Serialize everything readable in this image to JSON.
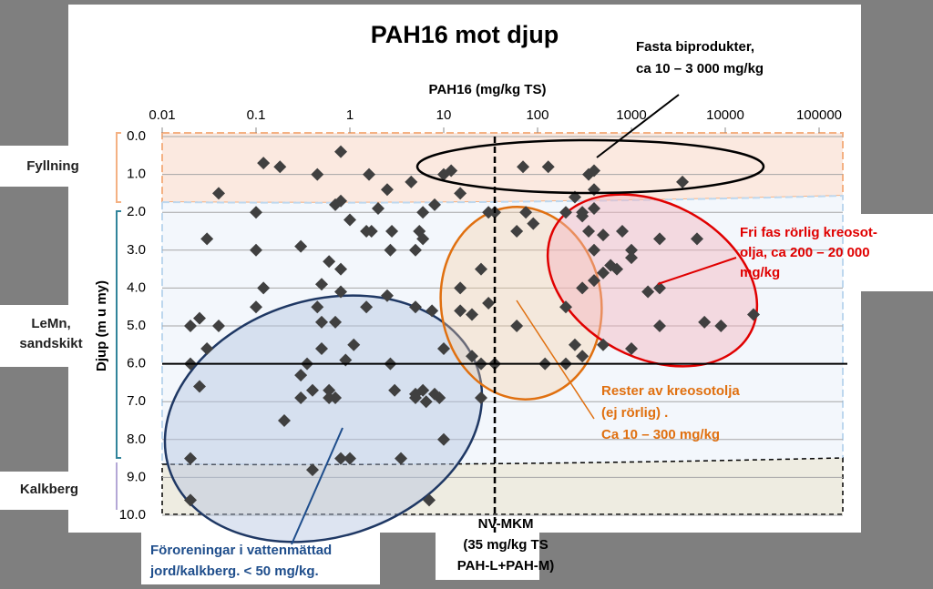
{
  "chart_data": {
    "type": "scatter",
    "title": "PAH16 mot djup",
    "x_label": "PAH16 (mg/kg TS)",
    "y_label": "Djup (m u my)",
    "log_x": true,
    "y_inverted": true,
    "grid": true,
    "color": "#404040",
    "xlim": [
      0.01,
      200000
    ],
    "xticks": [
      0.01,
      0.1,
      1,
      10,
      100,
      1000,
      10000,
      100000
    ],
    "ylim": [
      0,
      10
    ],
    "yticks": [
      {
        "value": 0,
        "label": "0.0"
      },
      {
        "value": 1,
        "label": "1.0"
      },
      {
        "value": 2,
        "label": "2.0"
      },
      {
        "value": 3,
        "label": "3.0"
      },
      {
        "value": 4,
        "label": "4.0"
      },
      {
        "value": 5,
        "label": "5.0"
      },
      {
        "value": 6,
        "label": "6.0"
      },
      {
        "value": 7,
        "label": "7.0"
      },
      {
        "value": 8,
        "label": "8.0"
      },
      {
        "value": 9,
        "label": "9.0"
      },
      {
        "value": 10,
        "label": "10.0"
      }
    ],
    "x": [
      0.12,
      0.18,
      0.45,
      0.8,
      1.6,
      2.5,
      4.5,
      12,
      10,
      15,
      0.04,
      70,
      130,
      400,
      350,
      250,
      400,
      3500,
      0.1,
      0.03,
      0.7,
      0.8,
      1.0,
      1.7,
      2.0,
      2.8,
      1.5,
      2.7,
      5.5,
      6.0,
      6.0,
      5.0,
      8.0,
      30,
      35,
      60,
      75,
      90,
      200,
      300,
      400,
      350,
      500,
      400,
      800,
      300,
      2000,
      5000,
      1000,
      1000,
      0.1,
      0.3,
      0.6,
      0.8,
      25,
      15,
      30,
      0.12,
      0.1,
      0.5,
      0.8,
      0.04,
      0.02,
      0.025,
      0.45,
      0.5,
      0.7,
      1.5,
      2.5,
      5,
      7.5,
      15,
      20,
      60,
      300,
      400,
      600,
      500,
      2000,
      1500,
      700,
      200,
      500,
      1000,
      2000,
      6000,
      9000,
      20000,
      0.02,
      0.03,
      0.025,
      0.3,
      0.35,
      0.5,
      0.4,
      0.3,
      0.6,
      0.6,
      0.7,
      0.9,
      1.1,
      2.7,
      3,
      5,
      5,
      6,
      8,
      6.5,
      9,
      10,
      20,
      25,
      25,
      35,
      120,
      200,
      250,
      300,
      0.2,
      0.02,
      0.4,
      0.8,
      1,
      3.5,
      10,
      7,
      0.02
    ],
    "values": [
      0.7,
      0.8,
      1.0,
      0.4,
      1.0,
      1.4,
      1.2,
      0.9,
      1.0,
      1.5,
      1.5,
      0.8,
      0.8,
      0.9,
      1.0,
      1.6,
      1.4,
      1.2,
      2.0,
      2.7,
      1.8,
      1.7,
      2.2,
      2.5,
      1.9,
      2.5,
      2.5,
      3.0,
      2.5,
      2.0,
      2.7,
      3.0,
      1.8,
      2.0,
      2.0,
      2.5,
      2.0,
      2.3,
      2.0,
      2.1,
      1.9,
      2.5,
      2.6,
      3.0,
      2.5,
      2.0,
      2.7,
      2.7,
      3.0,
      3.2,
      3.0,
      2.9,
      3.3,
      3.5,
      3.5,
      4.0,
      4.4,
      4.0,
      4.5,
      3.9,
      4.1,
      5.0,
      5.0,
      4.8,
      4.5,
      4.9,
      4.9,
      4.5,
      4.2,
      4.5,
      4.6,
      4.6,
      4.7,
      5.0,
      4.0,
      3.8,
      3.4,
      3.6,
      4.0,
      4.1,
      3.5,
      4.5,
      5.5,
      5.6,
      5.0,
      4.9,
      5.0,
      4.7,
      6.0,
      5.6,
      6.6,
      6.3,
      6.0,
      5.6,
      6.7,
      6.9,
      6.7,
      6.9,
      6.9,
      5.9,
      5.5,
      6.0,
      6.7,
      6.9,
      6.8,
      6.7,
      6.8,
      7.0,
      6.9,
      5.6,
      5.8,
      6.0,
      6.9,
      6.0,
      6.0,
      6.0,
      5.5,
      5.8,
      7.5,
      8.5,
      8.8,
      8.5,
      8.5,
      8.5,
      8.0,
      9.6,
      9.6
    ],
    "reference_lines": [
      {
        "axis": "x",
        "value": 35,
        "label": [
          "NV-MKM",
          "(35 mg/kg TS",
          "PAH-L+PAH-M)"
        ]
      },
      {
        "axis": "y",
        "value": 6
      }
    ],
    "layers": [
      {
        "lines": [
          "Fyllning"
        ]
      },
      {
        "lines": [
          "LeMn,",
          "sandskikt"
        ]
      },
      {
        "lines": [
          "Kalkberg"
        ]
      }
    ],
    "annotations": [
      {
        "lines": [
          "Fasta biprodukter,",
          "ca 10 – 3 000 mg/kg"
        ],
        "color": "#000000"
      },
      {
        "lines": [
          "Fri fas rörlig kreosot-",
          "olja, ca 200 – 20 000",
          "mg/kg"
        ],
        "color": "#e00000"
      },
      {
        "lines": [
          "Rester av kreosotolja",
          "(ej rörlig) .",
          "Ca 10 – 300 mg/kg"
        ],
        "color": "#e07010"
      },
      {
        "lines": [
          "Föroreningar i vattenmättad",
          "jord/kalkberg. < 50 mg/kg."
        ],
        "color": "#1f4e8c"
      }
    ]
  }
}
